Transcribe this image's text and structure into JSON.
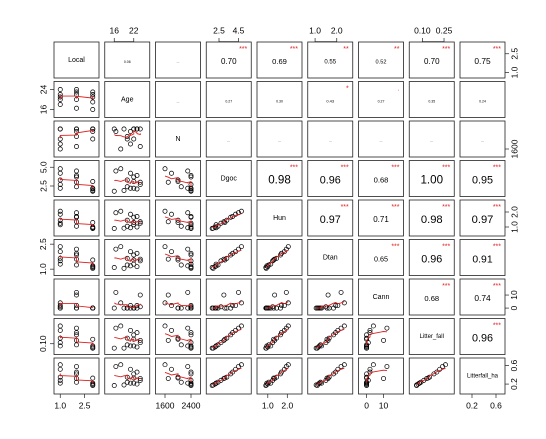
{
  "chart_data": {
    "type": "scatter-matrix",
    "variables": [
      "Local",
      "Age",
      "N",
      "Dgoc",
      "Hun",
      "Dtan",
      "Cann",
      "Litter_fall",
      "Litterfall_ha"
    ],
    "axis_ranges": [
      [
        0.8,
        3.2
      ],
      [
        14,
        26
      ],
      [
        1400,
        2600
      ],
      [
        1.5,
        5.5
      ],
      [
        0.6,
        2.6
      ],
      [
        0.8,
        2.6
      ],
      [
        -3,
        20
      ],
      [
        0.03,
        0.3
      ],
      [
        0.05,
        0.7
      ]
    ],
    "top_axes": [
      {
        "col": 1,
        "labels": [
          "16",
          "22"
        ],
        "values": [
          16,
          22
        ]
      },
      {
        "col": 3,
        "labels": [
          "2.5",
          "4.5"
        ],
        "values": [
          2.5,
          4.5
        ]
      },
      {
        "col": 5,
        "labels": [
          "1.0",
          "2.0"
        ],
        "values": [
          1.0,
          2.0
        ]
      },
      {
        "col": 7,
        "labels": [
          "0.10",
          "0.25"
        ],
        "values": [
          0.1,
          0.25
        ]
      }
    ],
    "bottom_axes": [
      {
        "col": 0,
        "labels": [
          "1.0",
          "2.5"
        ],
        "values": [
          1.0,
          2.5
        ]
      },
      {
        "col": 2,
        "labels": [
          "1600",
          "2400"
        ],
        "values": [
          1600,
          2400
        ]
      },
      {
        "col": 4,
        "labels": [
          "1.0",
          "2.0"
        ],
        "values": [
          1.0,
          2.0
        ]
      },
      {
        "col": 6,
        "labels": [
          "0",
          "10"
        ],
        "values": [
          0,
          10
        ]
      },
      {
        "col": 8,
        "labels": [
          "0.2",
          "0.6"
        ],
        "values": [
          0.2,
          0.6
        ]
      }
    ],
    "right_axes": [
      {
        "row": 0,
        "labels": [
          "1.0",
          "2.5"
        ],
        "values": [
          1.0,
          2.5
        ]
      },
      {
        "row": 2,
        "labels": [
          "1600"
        ],
        "values": [
          1600
        ]
      },
      {
        "row": 4,
        "labels": [
          "1.0",
          "2.0"
        ],
        "values": [
          1.0,
          2.0
        ]
      },
      {
        "row": 6,
        "labels": [
          "0",
          "10"
        ],
        "values": [
          0,
          10
        ]
      },
      {
        "row": 8,
        "labels": [
          "0.2",
          "0.6"
        ],
        "values": [
          0.2,
          0.6
        ]
      }
    ],
    "left_axes": [
      {
        "row": 1,
        "labels": [
          "16",
          "24"
        ],
        "values": [
          16,
          24
        ]
      },
      {
        "row": 3,
        "labels": [
          "2.5",
          "5.0"
        ],
        "values": [
          2.5,
          5.0
        ]
      },
      {
        "row": 5,
        "labels": [
          "1.0",
          "2.5"
        ],
        "values": [
          1.0,
          2.5
        ]
      },
      {
        "row": 7,
        "labels": [
          "0.10"
        ],
        "values": [
          0.1
        ]
      }
    ],
    "correlations": [
      {
        "row": 0,
        "col": 3,
        "label": "0.70",
        "stars": "***",
        "scale": 1.0
      },
      {
        "row": 0,
        "col": 4,
        "label": "0.69",
        "stars": "***",
        "scale": 0.95
      },
      {
        "row": 0,
        "col": 5,
        "label": "0.55",
        "stars": "**",
        "scale": 0.75
      },
      {
        "row": 0,
        "col": 6,
        "label": "0.52",
        "stars": "**",
        "scale": 0.7
      },
      {
        "row": 0,
        "col": 7,
        "label": "0.70",
        "stars": "***",
        "scale": 1.0
      },
      {
        "row": 0,
        "col": 8,
        "label": "0.75",
        "stars": "***",
        "scale": 1.05
      },
      {
        "row": 0,
        "col": 1,
        "label": "0.06",
        "stars": "",
        "scale": 0.35
      },
      {
        "row": 0,
        "col": 2,
        "label": "...",
        "stars": "",
        "scale": 0.4
      },
      {
        "row": 1,
        "col": 2,
        "label": "...",
        "stars": "",
        "scale": 0.4
      },
      {
        "row": 1,
        "col": 3,
        "label": "0.27",
        "stars": "",
        "scale": 0.32
      },
      {
        "row": 1,
        "col": 4,
        "label": "0.30",
        "stars": "",
        "scale": 0.32
      },
      {
        "row": 1,
        "col": 5,
        "label": "0.43",
        "stars": "*",
        "scale": 0.5
      },
      {
        "row": 1,
        "col": 6,
        "label": "0.27",
        "stars": ".",
        "scale": 0.32
      },
      {
        "row": 1,
        "col": 7,
        "label": "0.35",
        "stars": "",
        "scale": 0.32
      },
      {
        "row": 1,
        "col": 8,
        "label": "0.24",
        "stars": "",
        "scale": 0.3
      },
      {
        "row": 2,
        "col": 3,
        "label": "...",
        "stars": "",
        "scale": 0.35
      },
      {
        "row": 2,
        "col": 4,
        "label": "...",
        "stars": "",
        "scale": 0.35
      },
      {
        "row": 2,
        "col": 5,
        "label": "...",
        "stars": "",
        "scale": 0.35
      },
      {
        "row": 2,
        "col": 6,
        "label": "...",
        "stars": "",
        "scale": 0.35
      },
      {
        "row": 2,
        "col": 7,
        "label": "...",
        "stars": "",
        "scale": 0.35
      },
      {
        "row": 2,
        "col": 8,
        "label": "...",
        "stars": "",
        "scale": 0.35
      },
      {
        "row": 3,
        "col": 4,
        "label": "0.98",
        "stars": "***",
        "scale": 1.45
      },
      {
        "row": 3,
        "col": 5,
        "label": "0.96",
        "stars": "***",
        "scale": 1.35
      },
      {
        "row": 3,
        "col": 6,
        "label": "0.68",
        "stars": "***",
        "scale": 0.95
      },
      {
        "row": 3,
        "col": 7,
        "label": "1.00",
        "stars": "***",
        "scale": 1.45
      },
      {
        "row": 3,
        "col": 8,
        "label": "0.95",
        "stars": "***",
        "scale": 1.35
      },
      {
        "row": 4,
        "col": 5,
        "label": "0.97",
        "stars": "***",
        "scale": 1.35
      },
      {
        "row": 4,
        "col": 6,
        "label": "0.71",
        "stars": "***",
        "scale": 1.0
      },
      {
        "row": 4,
        "col": 7,
        "label": "0.98",
        "stars": "***",
        "scale": 1.4
      },
      {
        "row": 4,
        "col": 8,
        "label": "0.97",
        "stars": "***",
        "scale": 1.4
      },
      {
        "row": 5,
        "col": 6,
        "label": "0.65",
        "stars": "***",
        "scale": 0.9
      },
      {
        "row": 5,
        "col": 7,
        "label": "0.96",
        "stars": "***",
        "scale": 1.35
      },
      {
        "row": 5,
        "col": 8,
        "label": "0.91",
        "stars": "***",
        "scale": 1.3
      },
      {
        "row": 6,
        "col": 7,
        "label": "0.68",
        "stars": "***",
        "scale": 0.95
      },
      {
        "row": 6,
        "col": 8,
        "label": "0.74",
        "stars": "***",
        "scale": 1.05
      },
      {
        "row": 7,
        "col": 8,
        "label": "0.96",
        "stars": "***",
        "scale": 1.35
      }
    ],
    "observations": [
      [
        1,
        18.0,
        1600,
        4.8,
        2.05,
        2.35,
        4,
        0.26,
        0.62
      ],
      [
        1,
        20.0,
        2000,
        3.3,
        1.45,
        1.65,
        0,
        0.15,
        0.35
      ],
      [
        1,
        22.0,
        2400,
        2.2,
        1.15,
        1.3,
        0,
        0.08,
        0.22
      ],
      [
        1,
        24.0,
        2400,
        2.7,
        1.25,
        1.5,
        1,
        0.11,
        0.28
      ],
      [
        1,
        21.0,
        1800,
        4.2,
        1.85,
        2.05,
        2,
        0.22,
        0.52
      ],
      [
        2,
        16.5,
        2300,
        4.5,
        1.95,
        2.2,
        12,
        0.24,
        0.58
      ],
      [
        2,
        24.0,
        1700,
        3.0,
        1.35,
        1.6,
        10,
        0.13,
        0.32
      ],
      [
        2,
        22.0,
        2400,
        3.7,
        1.65,
        1.85,
        0,
        0.18,
        0.42
      ],
      [
        2,
        20.0,
        2100,
        2.4,
        1.05,
        1.25,
        0,
        0.09,
        0.24
      ],
      [
        2,
        23.0,
        2400,
        3.9,
        1.7,
        1.95,
        2,
        0.2,
        0.46
      ],
      [
        3,
        16.0,
        2400,
        1.8,
        0.9,
        1.1,
        0,
        0.06,
        0.17
      ],
      [
        3,
        21.0,
        2300,
        2.2,
        0.95,
        1.2,
        0,
        0.08,
        0.22
      ],
      [
        3,
        23.0,
        2400,
        2.1,
        1.0,
        1.15,
        0,
        0.07,
        0.2
      ],
      [
        3,
        19.0,
        2400,
        1.9,
        0.92,
        1.05,
        0,
        0.06,
        0.18
      ],
      [
        3,
        22.0,
        2000,
        3.1,
        1.3,
        1.55,
        0,
        0.14,
        0.33
      ]
    ]
  }
}
